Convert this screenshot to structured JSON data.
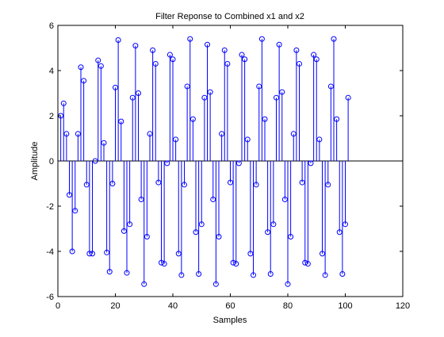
{
  "chart_data": {
    "type": "stem",
    "title": "Filter Reponse to Combined x1 and x2",
    "xlabel": "Samples",
    "ylabel": "Amplitude",
    "xlim": [
      0,
      120
    ],
    "ylim": [
      -6,
      6
    ],
    "xticks": [
      0,
      20,
      40,
      60,
      80,
      100,
      120
    ],
    "yticks": [
      -6,
      -4,
      -2,
      0,
      2,
      4,
      6
    ],
    "grid": false,
    "series_color": "#0000ff",
    "x": [
      1,
      2,
      3,
      4,
      5,
      6,
      7,
      8,
      9,
      10,
      11,
      12,
      13,
      14,
      15,
      16,
      17,
      18,
      19,
      20,
      21,
      22,
      23,
      24,
      25,
      26,
      27,
      28,
      29,
      30,
      31,
      32,
      33,
      34,
      35,
      36,
      37,
      38,
      39,
      40,
      41,
      42,
      43,
      44,
      45,
      46,
      47,
      48,
      49,
      50,
      51,
      52,
      53,
      54,
      55,
      56,
      57,
      58,
      59,
      60,
      61,
      62,
      63,
      64,
      65,
      66,
      67,
      68,
      69,
      70,
      71,
      72,
      73,
      74,
      75,
      76,
      77,
      78,
      79,
      80,
      81,
      82,
      83,
      84,
      85,
      86,
      87,
      88,
      89,
      90,
      91,
      92,
      93,
      94,
      95,
      96,
      97,
      98,
      99,
      100,
      101
    ],
    "y": [
      2.0,
      2.55,
      1.2,
      -1.5,
      -4.0,
      -2.2,
      1.2,
      4.15,
      3.55,
      -1.05,
      -4.1,
      -4.1,
      0.0,
      4.45,
      4.2,
      0.8,
      -4.05,
      -4.9,
      -1.0,
      3.25,
      5.35,
      1.75,
      -3.1,
      -4.95,
      -2.8,
      2.8,
      5.1,
      3.0,
      -1.7,
      -5.45,
      -3.35,
      1.2,
      4.9,
      4.3,
      -0.95,
      -4.5,
      -4.55,
      -0.1,
      4.7,
      4.5,
      0.95,
      -4.1,
      -5.05,
      -1.05,
      3.3,
      5.4,
      1.85,
      -3.15,
      -5.0,
      -2.8,
      2.8,
      5.15,
      3.05,
      -1.7,
      -5.45,
      -3.35,
      1.2,
      4.9,
      4.3,
      -0.95,
      -4.5,
      -4.55,
      -0.1,
      4.7,
      4.5,
      0.95,
      -4.1,
      -5.05,
      -1.05,
      3.3,
      5.4,
      1.85,
      -3.15,
      -5.0,
      -2.8,
      2.8,
      5.15,
      3.05,
      -1.7,
      -5.45,
      -3.35,
      1.2,
      4.9,
      4.3,
      -0.95,
      -4.5,
      -4.55,
      -0.1,
      4.7,
      4.5,
      0.95,
      -4.1,
      -5.05,
      -1.05,
      3.3,
      5.4,
      1.85,
      -3.15,
      -5.0,
      -2.8,
      2.8
    ]
  }
}
